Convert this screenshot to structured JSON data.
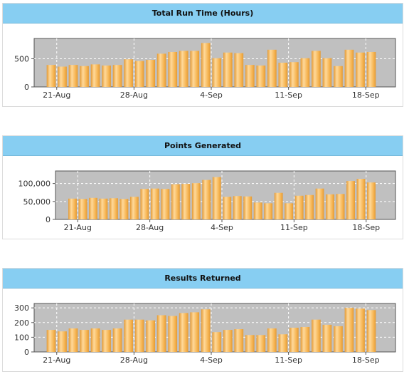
{
  "chart_data": [
    {
      "type": "bar",
      "title": "Total Run Time (Hours)",
      "x_tick_labels": [
        "21-Aug",
        "28-Aug",
        "4-Sep",
        "11-Sep",
        "18-Sep"
      ],
      "y_tick_labels": [
        "0",
        "500"
      ],
      "y_ticks": [
        0,
        500
      ],
      "ylim": [
        0,
        860
      ],
      "grid": true,
      "values": [
        390,
        360,
        390,
        370,
        400,
        380,
        390,
        490,
        460,
        480,
        590,
        620,
        640,
        640,
        780,
        510,
        610,
        600,
        390,
        380,
        660,
        430,
        440,
        510,
        640,
        510,
        370,
        660,
        610,
        620
      ]
    },
    {
      "type": "bar",
      "title": "Points Generated",
      "x_tick_labels": [
        "21-Aug",
        "28-Aug",
        "4-Sep",
        "11-Sep",
        "18-Sep"
      ],
      "y_tick_labels": [
        "0",
        "50,000",
        "100,000"
      ],
      "y_ticks": [
        0,
        50000,
        100000
      ],
      "ylim": [
        0,
        135000
      ],
      "grid": true,
      "values": [
        58000,
        57000,
        60000,
        58000,
        59000,
        57000,
        63000,
        85000,
        86000,
        85000,
        98000,
        99000,
        101000,
        110000,
        118000,
        63000,
        65000,
        64000,
        47000,
        45000,
        74000,
        45000,
        66000,
        68000,
        86000,
        70000,
        71000,
        107000,
        113000,
        103000
      ]
    },
    {
      "type": "bar",
      "title": "Results Returned",
      "x_tick_labels": [
        "21-Aug",
        "28-Aug",
        "4-Sep",
        "11-Sep",
        "18-Sep"
      ],
      "y_tick_labels": [
        "0",
        "100",
        "200",
        "300"
      ],
      "y_ticks": [
        0,
        100,
        200,
        300
      ],
      "ylim": [
        0,
        330
      ],
      "grid": true,
      "values": [
        150,
        140,
        160,
        150,
        160,
        150,
        160,
        220,
        220,
        215,
        250,
        245,
        265,
        270,
        290,
        135,
        150,
        155,
        115,
        115,
        160,
        120,
        165,
        170,
        220,
        185,
        175,
        300,
        295,
        285
      ]
    }
  ],
  "colors": {
    "header_bg": "#87cef2",
    "plot_bg": "#c0c0c0",
    "bar_light": "#ffd99a",
    "bar_mid": "#f6b553",
    "bar_dark": "#e39a36"
  }
}
